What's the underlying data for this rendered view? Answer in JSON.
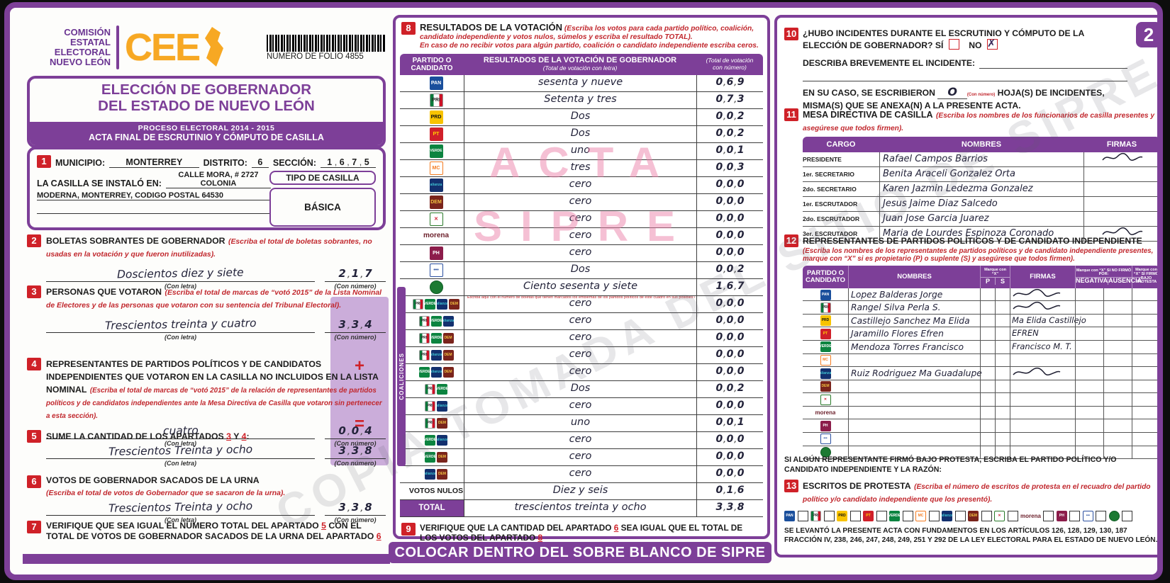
{
  "page": {
    "number": "2",
    "watermark_line1": "ACTA",
    "watermark_line2": "SIPRE",
    "watermark_diagonal": "COPIA TOMADA DEL SITIO DE SIPRE",
    "bottom_banner": "COLOCAR DENTRO DEL SOBRE BLANCO DE SIPRE"
  },
  "header": {
    "org_lines": [
      "COMISIÓN",
      "ESTATAL",
      "ELECTORAL",
      "NUEVO LEÓN"
    ],
    "logo_text": "CEE",
    "folio_label": "NUMERO DE FOLIO 4855",
    "title_line1": "ELECCIÓN DE GOBERNADOR",
    "title_line2": "DEL ESTADO DE NUEVO LEÓN",
    "process": "PROCESO ELECTORAL  2014 - 2015",
    "acta_title": "ACTA FINAL DE ESCRUTINIO Y CÓMPUTO DE CASILLA"
  },
  "section1": {
    "num": "1",
    "municipio_label": "MUNICIPIO:",
    "municipio": "MONTERREY",
    "distrito_label": "DISTRITO:",
    "distrito": "6",
    "seccion_label": "SECCIÓN:",
    "seccion": "1675",
    "casilla_label": "LA CASILLA SE INSTALÓ EN:",
    "address1": "CALLE MORA, # 2727 COLONIA",
    "address2": "MODERNA, MONTERREY, CODIGO POSTAL 64530",
    "tipo_label": "TIPO DE CASILLA",
    "tipo": "BÁSICA"
  },
  "section2": {
    "num": "2",
    "title": "BOLETAS SOBRANTES DE GOBERNADOR",
    "note": "(Escriba el total de boletas sobrantes, no usadas en la votación y que fueron inutilizadas).",
    "letra": "Doscientos diez y siete",
    "numero": "217",
    "con_letra": "(Con letra)",
    "con_numero": "(Con número)"
  },
  "section3": {
    "num": "3",
    "title": "PERSONAS QUE VOTARON",
    "note": "(Escriba el total de marcas de “votó 2015” de la Lista Nominal de Electores y de las personas que votaron con su sentencia del Tribunal Electoral).",
    "letra": "Trescientos treinta y cuatro",
    "numero": "334",
    "con_letra": "(Con letra)",
    "con_numero": "(Con número)"
  },
  "section4": {
    "num": "4",
    "title": "REPRESENTANTES DE PARTIDOS POLÍTICOS Y DE CANDIDATOS INDEPENDIENTES QUE VOTARON EN LA CASILLA NO INCLUIDOS EN LA LISTA NOMINAL",
    "note": "(Escriba el total de marcas de “votó 2015” de la relación de representantes de partidos políticos y de candidatos independientes ante la Mesa Directiva de Casilla que votaron sin pertenecer a esta sección).",
    "letra": "cuatro",
    "numero": "004",
    "con_letra": "(Con letra)",
    "con_numero": "(Con número)",
    "operator": "+"
  },
  "section5": {
    "num": "5",
    "t1": "SUME LA CANTIDAD DE LOS APARTADOS",
    "n1": "3",
    "t2": "Y",
    "n2": "4",
    "t3": ":",
    "letra": "Trescientos Treinta y ocho",
    "numero": "338",
    "con_letra": "(Con letra)",
    "con_numero": "(Con número)",
    "operator": "="
  },
  "section6": {
    "num": "6",
    "title": "VOTOS DE GOBERNADOR SACADOS DE LA URNA",
    "note": "(Escriba el total de votos de Gobernador que se sacaron de la urna).",
    "letra": "Trescientos Treinta y ocho",
    "numero": "338",
    "con_letra": "(Con letra)",
    "con_numero": "(Con número)"
  },
  "section7": {
    "num": "7",
    "t1": "VERIFIQUE QUE SEA IGUAL EL NÚMERO TOTAL DEL APARTADO",
    "n1": "5",
    "t2": "CON EL TOTAL DE VOTOS DE GOBERNADOR SACADOS DE LA URNA DEL APARTADO",
    "n2": "6"
  },
  "section8": {
    "num": "8",
    "title": "RESULTADOS DE LA VOTACIÓN",
    "note1": "(Escriba los votos para cada partido político, coalición, candidato independiente y votos nulos, súmelos y escriba el resultado TOTAL).",
    "note2": "En caso de no recibir votos para algún partido, coalición o candidato independiente escriba ceros.",
    "col1a": "PARTIDO O",
    "col1b": "CANDIDATO",
    "col2": "RESULTADOS DE LA VOTACIÓN DE GOBERNADOR",
    "col2_sub": "(Total de votación con letra)",
    "col3a": "(Total de votación",
    "col3b": "con número)",
    "coalition_note": "Escriba aquí con el número de boletas que tienen marcados los emblemas de los partidos políticos de este cuadro en sus posibles combinaciones",
    "coaliciones_label": "COALICIONES",
    "rows": [
      {
        "logos": [
          "pan"
        ],
        "letra": "sesenta y nueve",
        "numero": "069"
      },
      {
        "logos": [
          "pri"
        ],
        "letra": "Setenta y tres",
        "numero": "073"
      },
      {
        "logos": [
          "prd"
        ],
        "letra": "Dos",
        "numero": "002"
      },
      {
        "logos": [
          "pt"
        ],
        "letra": "Dos",
        "numero": "002"
      },
      {
        "logos": [
          "verde"
        ],
        "letra": "uno",
        "numero": "001"
      },
      {
        "logos": [
          "mc"
        ],
        "letra": "tres",
        "numero": "003"
      },
      {
        "logos": [
          "alianza"
        ],
        "letra": "cero",
        "numero": "000"
      },
      {
        "logos": [
          "democrata"
        ],
        "letra": "cero",
        "numero": "000"
      },
      {
        "logos": [
          "cruzada"
        ],
        "letra": "cero",
        "numero": "000"
      },
      {
        "logos": [
          "morena"
        ],
        "letra": "cero",
        "numero": "000"
      },
      {
        "logos": [
          "humanista"
        ],
        "letra": "cero",
        "numero": "000"
      },
      {
        "logos": [
          "es"
        ],
        "letra": "Dos",
        "numero": "002"
      },
      {
        "logos": [
          "independiente"
        ],
        "letra": "Ciento sesenta y siete",
        "numero": "167"
      },
      {
        "logos": [
          "pri",
          "verde",
          "alianza",
          "democrata"
        ],
        "coalition": true,
        "note": true,
        "letra": "cero",
        "numero": "000"
      },
      {
        "logos": [
          "pri",
          "verde",
          "alianza"
        ],
        "coalition": true,
        "letra": "cero",
        "numero": "000"
      },
      {
        "logos": [
          "pri",
          "verde",
          "democrata"
        ],
        "coalition": true,
        "letra": "cero",
        "numero": "000"
      },
      {
        "logos": [
          "pri",
          "alianza",
          "democrata"
        ],
        "coalition": true,
        "letra": "cero",
        "numero": "000"
      },
      {
        "logos": [
          "verde",
          "alianza",
          "democrata"
        ],
        "coalition": true,
        "letra": "cero",
        "numero": "000"
      },
      {
        "logos": [
          "pri",
          "verde"
        ],
        "coalition": true,
        "letra": "Dos",
        "numero": "002"
      },
      {
        "logos": [
          "pri",
          "alianza"
        ],
        "coalition": true,
        "letra": "cero",
        "numero": "000"
      },
      {
        "logos": [
          "pri",
          "democrata"
        ],
        "coalition": true,
        "letra": "uno",
        "numero": "001"
      },
      {
        "logos": [
          "verde",
          "alianza"
        ],
        "coalition": true,
        "letra": "cero",
        "numero": "000"
      },
      {
        "logos": [
          "verde",
          "democrata"
        ],
        "coalition": true,
        "letra": "cero",
        "numero": "000"
      },
      {
        "logos": [
          "alianza",
          "democrata"
        ],
        "coalition": true,
        "letra": "cero",
        "numero": "000"
      },
      {
        "label": "VOTOS NULOS",
        "letra": "Diez y seis",
        "numero": "016"
      },
      {
        "label": "TOTAL",
        "total": true,
        "letra": "trescientos treinta y ocho",
        "numero": "338"
      }
    ]
  },
  "section9": {
    "num": "9",
    "t1": "VERIFIQUE QUE LA CANTIDAD DEL APARTADO",
    "n1": "6",
    "t2": "SEA IGUAL QUE EL TOTAL DE LOS VOTOS DEL APARTADO",
    "n2": "8"
  },
  "section10": {
    "num": "10",
    "q1": "¿HUBO INCIDENTES DURANTE EL ESCRUTINIO Y CÓMPUTO DE LA ELECCIÓN DE GOBERNADOR?",
    "si_label": "SÍ",
    "no_label": "NO",
    "no_mark": "✗",
    "describe_label": "DESCRIBA BREVEMENTE EL INCIDENTE:",
    "caso1": "EN SU CASO, SE ESCRIBIERON",
    "hojas_value": "O",
    "con_numero": "(Con número)",
    "caso2": "HOJA(S) DE INCIDENTES, MISMA(S) QUE SE ANEXA(N) A LA PRESENTE ACTA."
  },
  "section11": {
    "num": "11",
    "title": "MESA DIRECTIVA DE CASILLA",
    "note": "(Escriba los nombres de los funcionarios de casilla presentes y asegúrese que todos firmen).",
    "h_cargo": "CARGO",
    "h_nombres": "NOMBRES",
    "h_firmas": "FIRMAS",
    "rows": [
      {
        "cargo": "PRESIDENTE",
        "nombre": "Rafael Campos Barrios",
        "sig": true
      },
      {
        "cargo": "1er. SECRETARIO",
        "nombre": "Benita Araceli Gonzalez Orta",
        "sig": false
      },
      {
        "cargo": "2do. SECRETARIO",
        "nombre": "Karen Jazmin Ledezma Gonzalez",
        "sig": false
      },
      {
        "cargo": "1er. ESCRUTADOR",
        "nombre": "Jesus Jaime Diaz Salcedo",
        "sig": false
      },
      {
        "cargo": "2do. ESCRUTADOR",
        "nombre": "Juan Jose Garcia Juarez",
        "sig": false
      },
      {
        "cargo": "3er. ESCRUTADOR",
        "nombre": "Maria de Lourdes Espinoza Coronado",
        "sig": true
      }
    ]
  },
  "section12": {
    "num": "12",
    "title": "REPRESENTANTES DE PARTIDOS POLÍTICOS Y DE CANDIDATO INDEPENDIENTE",
    "note": "(Escriba los nombres de los representantes de partidos políticos y de candidato independiente presentes, marque con “X” si es propietario (P) o suplente (S) y asegúrese que todos firmen).",
    "h_partido_a": "PARTIDO O",
    "h_partido_b": "CANDIDATO",
    "h_nombres": "NOMBRES",
    "h_marque": "Marque con “X”",
    "h_p": "P",
    "h_s": "S",
    "h_firmas": "FIRMAS",
    "h_nofirmo": "Marque con “X” SI NO FIRMÓ POR:",
    "h_negativa": "NEGATIVA",
    "h_ausencia": "AUSENCIA",
    "h_protesta": "Marque con “X” SI FIRMÓ BAJO PROTESTA",
    "rows": [
      {
        "party": "pan",
        "nombre": "Lopez Balderas Jorge",
        "firma": "",
        "sig": true
      },
      {
        "party": "pri",
        "nombre": "Rangel Silva Perla S.",
        "firma": "",
        "sig": true
      },
      {
        "party": "prd",
        "nombre": "Castillejo Sanchez Ma Elida",
        "firma": "Ma Elida Castillejo",
        "sig": false
      },
      {
        "party": "pt",
        "nombre": "Jaramillo Flores Efren",
        "firma": "EFREN",
        "sig": false
      },
      {
        "party": "verde",
        "nombre": "Mendoza Torres Francisco",
        "firma": "Francisco M. T.",
        "sig": false
      },
      {
        "party": "mc",
        "nombre": "",
        "firma": "",
        "sig": false
      },
      {
        "party": "alianza",
        "nombre": "Ruiz Rodriguez Ma Guadalupe",
        "firma": "",
        "sig": true
      },
      {
        "party": "democrata",
        "nombre": "",
        "firma": "",
        "sig": false
      },
      {
        "party": "cruzada",
        "nombre": "",
        "firma": "",
        "sig": false
      },
      {
        "party": "morena",
        "nombre": "",
        "firma": "",
        "sig": false
      },
      {
        "party": "humanista",
        "nombre": "",
        "firma": "",
        "sig": false
      },
      {
        "party": "es",
        "nombre": "",
        "firma": "",
        "sig": false
      },
      {
        "party": "independiente",
        "nombre": "",
        "firma": "",
        "sig": false
      }
    ]
  },
  "protesta_text": "SI ALGÚN REPRESENTANTE FIRMÓ BAJO PROTESTA, ESCRIBA EL PARTIDO POLÍTICO Y/O CANDIDATO INDEPENDIENTE Y LA RAZÓN:",
  "section13": {
    "num": "13",
    "title": "ESCRITOS DE PROTESTA",
    "note": "(Escriba el número de escritos de protesta en el recuadro del partido político y/o candidato independiente que los presentó)."
  },
  "legal": "SE LEVANTÓ LA PRESENTE ACTA CON FUNDAMENTOS EN LOS ARTÍCULOS 126, 128, 129, 130, 187 FRACCIÓN IV, 238, 246, 247, 248, 249, 251 Y 292 DE LA LEY ELECTORAL PARA EL ESTADO DE NUEVO LEÓN.",
  "party_order": [
    "pan",
    "pri",
    "prd",
    "pt",
    "verde",
    "mc",
    "alianza",
    "democrata",
    "cruzada",
    "morena",
    "humanista",
    "es",
    "independiente"
  ],
  "parties": {
    "pan": {
      "name": "PAN",
      "bg": "#1a4f9c",
      "fg": "#ffffff",
      "label": "PAN"
    },
    "pri": {
      "name": "PRI",
      "bg": "linear-gradient(90deg,#0b7a3b 0 26%,#ffffff 26% 74%,#ce1126 74% 100%)",
      "fg": "#222222",
      "label": "PRI",
      "border": "#999999"
    },
    "prd": {
      "name": "PRD",
      "bg": "#f8c300",
      "fg": "#111111",
      "label": "PRD"
    },
    "pt": {
      "name": "PT",
      "bg": "#d0202a",
      "fg": "#ffd200",
      "label": "PT"
    },
    "verde": {
      "name": "PARTIDO VERDE",
      "bg": "#0c8440",
      "fg": "#ffffff",
      "label": "VERDE"
    },
    "mc": {
      "name": "MOVIMIENTO CIUDADANO",
      "bg": "#ffffff",
      "fg": "#f47b20",
      "label": "MC",
      "border": "#f47b20"
    },
    "alianza": {
      "name": "NUEVA ALIANZA",
      "bg": "#13306e",
      "fg": "#3fc1d0",
      "label": "alianza"
    },
    "democrata": {
      "name": "DEMÓCRATA",
      "bg": "#7a241c",
      "fg": "#f0c040",
      "label": "DEM"
    },
    "cruzada": {
      "name": "CRUZADA CIUDADANA",
      "bg": "#ffffff",
      "fg": "#cf2030",
      "label": "✕",
      "border": "#2a7a2a"
    },
    "morena": {
      "name": "morena",
      "bg": "transparent",
      "fg": "#6b1f2a",
      "label": "morena",
      "text": true
    },
    "humanista": {
      "name": "HUMANISTA",
      "bg": "#8c1d4b",
      "fg": "#ffffff",
      "label": "PH"
    },
    "es": {
      "name": "ENCUENTRO SOCIAL",
      "bg": "#ffffff",
      "fg": "#2a4fa0",
      "label": "•••",
      "border": "#2a4fa0"
    },
    "independiente": {
      "name": "CANDIDATO INDEPENDIENTE",
      "bg": "#1c7a33",
      "fg": "#ffffff",
      "label": "",
      "circle": true
    }
  }
}
